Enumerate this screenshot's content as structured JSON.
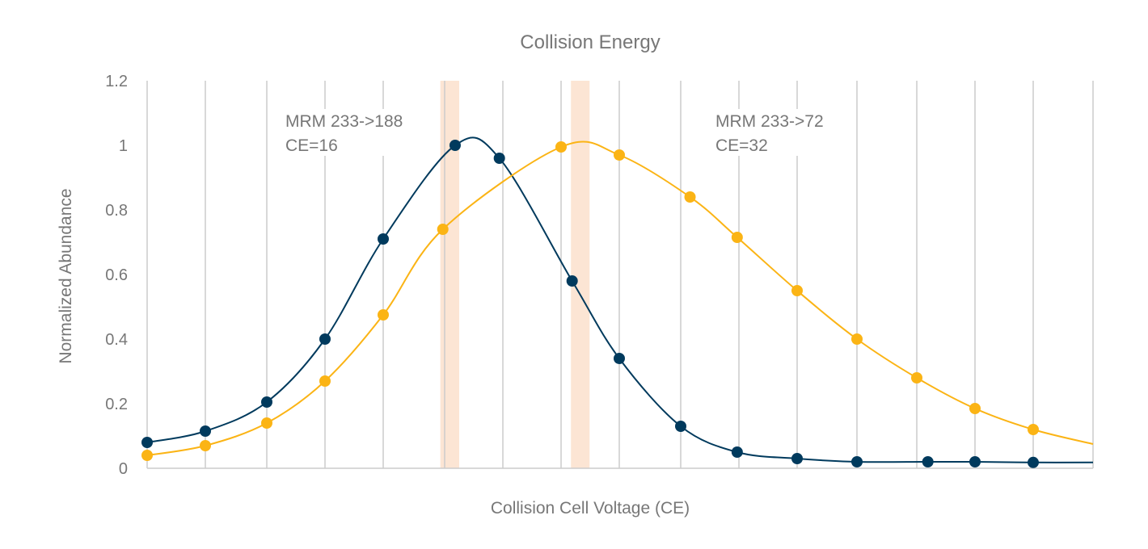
{
  "chart_data": {
    "type": "line",
    "title": "Collision Energy",
    "xlabel": "Collision Cell Voltage (CE)",
    "ylabel": "Normalized Abundance",
    "ylim": [
      0,
      1.2
    ],
    "yticks": [
      "0",
      "0.2",
      "0.4",
      "0.6",
      "0.8",
      "1",
      "1.2"
    ],
    "ytick_values": [
      0,
      0.2,
      0.4,
      0.6,
      0.8,
      1,
      1.2
    ],
    "x_gridlines": 17,
    "grid": "vertical",
    "smooth": true,
    "colors": {
      "dark": "#003a5d",
      "yellow": "#fbb415",
      "band": "#fce5d4",
      "grid": "#cccccc"
    },
    "series": [
      {
        "color": "#003a5d",
        "x": [
          0,
          1,
          2,
          3,
          4,
          5.18,
          5.94,
          7.19,
          8,
          9,
          9.97,
          11,
          12,
          13.19,
          14,
          15,
          16
        ],
        "y": [
          0.08,
          0.115,
          0.205,
          0.4,
          0.71,
          1.0,
          0.96,
          0.58,
          0.34,
          0.13,
          0.05,
          0.03,
          0.02,
          0.02,
          0.02,
          0.018,
          0.018
        ],
        "markers_on": 16
      },
      {
        "color": "#fbb415",
        "x": [
          0,
          1,
          2,
          3,
          4,
          4.97,
          7,
          8,
          9.16,
          9.97,
          11,
          12,
          13,
          14,
          15,
          16
        ],
        "y": [
          0.04,
          0.07,
          0.14,
          0.27,
          0.475,
          0.74,
          0.995,
          0.97,
          0.84,
          0.715,
          0.55,
          0.4,
          0.28,
          0.185,
          0.12,
          0.075
        ],
        "markers_on": 15
      }
    ],
    "bands": [
      [
        4.93,
        5.25
      ],
      [
        7.17,
        7.49
      ]
    ],
    "annotations": [
      {
        "lines": [
          "MRM 233->188",
          "CE=16"
        ]
      },
      {
        "lines": [
          "MRM 233->72",
          "CE=32"
        ]
      }
    ]
  }
}
